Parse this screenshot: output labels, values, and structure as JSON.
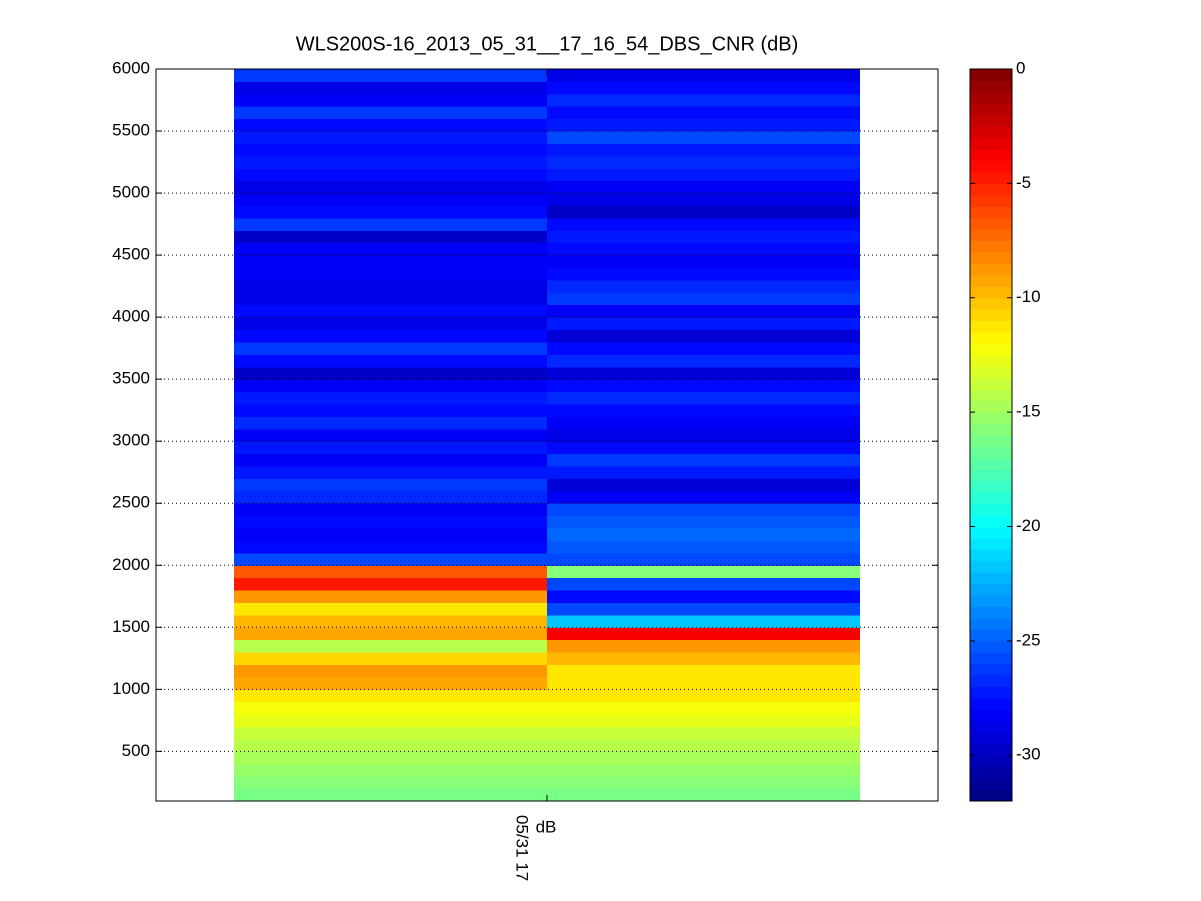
{
  "chart_data": {
    "type": "heatmap",
    "title": "WLS200S-16_2013_05_31__17_16_54_DBS_CNR (dB)",
    "xlabel": "dB",
    "x_edges": [
      16.8,
      17,
      17.2
    ],
    "xlim": [
      16.75,
      17.25
    ],
    "xticks": [
      {
        "value": 17,
        "label": "05/31 17"
      }
    ],
    "y_edges": [
      100,
      200,
      300,
      400,
      500,
      600,
      700,
      800,
      900,
      1000,
      1100,
      1200,
      1300,
      1400,
      1500,
      1600,
      1700,
      1800,
      1900,
      2000,
      2100,
      2200,
      2300,
      2400,
      2500,
      2600,
      2700,
      2800,
      2900,
      3000,
      3100,
      3200,
      3300,
      3400,
      3500,
      3600,
      3700,
      3800,
      3900,
      4000,
      4100,
      4200,
      4300,
      4400,
      4500,
      4600,
      4700,
      4800,
      4900,
      5000,
      5100,
      5200,
      5300,
      5400,
      5500,
      5600,
      5700,
      5800,
      5900,
      6000
    ],
    "ylim": [
      100,
      6000
    ],
    "yticks": [
      500,
      1000,
      1500,
      2000,
      2500,
      3000,
      3500,
      4000,
      4500,
      5000,
      5500,
      6000
    ],
    "grid": true,
    "values": [
      [
        -16.5,
        -16,
        -15.5,
        -15,
        -14.5,
        -14,
        -13,
        -12.5,
        -11.5,
        -9.5,
        -9,
        -11,
        -14.5,
        -9.5,
        -10,
        -11.5,
        -9,
        -5,
        -7,
        -26,
        -28,
        -28.5,
        -28,
        -28.5,
        -27,
        -26.5,
        -27.5,
        -28.5,
        -27.5,
        -28.5,
        -27,
        -28,
        -27.5,
        -28.5,
        -30,
        -28,
        -26.5,
        -28,
        -29,
        -28,
        -29,
        -29,
        -28.5,
        -28.5,
        -28.5,
        -30,
        -26.5,
        -28,
        -28.5,
        -29,
        -28,
        -27.5,
        -28,
        -27.5,
        -28,
        -26.5,
        -28.5,
        -29,
        -26.5
      ],
      [
        -16.5,
        -16,
        -15.5,
        -15,
        -14.5,
        -14,
        -13,
        -12.5,
        -11.5,
        -11.5,
        -11.5,
        -10,
        -9,
        -4,
        -22,
        -26,
        -28,
        -26,
        -16,
        -26,
        -25.5,
        -25,
        -25.5,
        -26,
        -28.5,
        -29.5,
        -27.5,
        -26.5,
        -28,
        -29,
        -28.5,
        -28,
        -27,
        -28,
        -29.5,
        -27,
        -28,
        -29.5,
        -27.5,
        -28.5,
        -26.5,
        -27,
        -28,
        -28.5,
        -28,
        -27.5,
        -28,
        -30,
        -29,
        -28.5,
        -27.5,
        -27,
        -27.5,
        -26,
        -27.5,
        -28,
        -27,
        -28,
        -29
      ]
    ],
    "colormap": "jet",
    "clim": [
      -32,
      0
    ],
    "colorbar_ticks": [
      -30,
      -25,
      -20,
      -15,
      -10,
      -5,
      0
    ]
  }
}
